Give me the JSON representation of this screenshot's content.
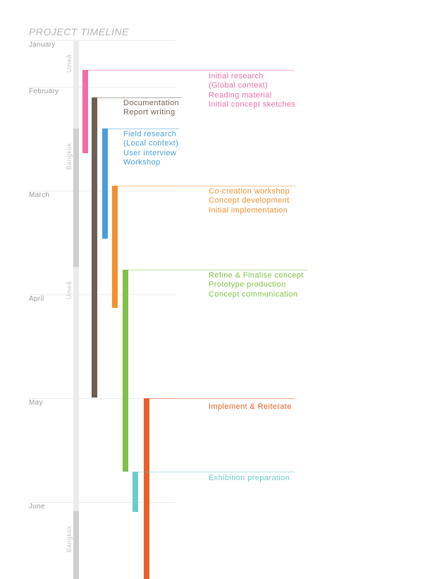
{
  "title": "PROJECT TIMELINE",
  "months": [
    "January",
    "February",
    "March",
    "April",
    "May",
    "June"
  ],
  "locations": [
    {
      "name": "Umeå"
    },
    {
      "name": "Bangkok"
    },
    {
      "name": "Umeå"
    },
    {
      "name": "Bangkok"
    }
  ],
  "phases": [
    {
      "id": "research",
      "color": "#ee6fa5",
      "lines": [
        "Initial research",
        "(Global context)",
        "Reading material",
        "Initial concept sketches"
      ]
    },
    {
      "id": "documentation",
      "color": "#6f5e55",
      "lines": [
        "Documentation",
        "Report writing"
      ]
    },
    {
      "id": "field",
      "color": "#4a9ed8",
      "lines": [
        "Field research",
        "(Local context)",
        "User interview",
        "Workshop"
      ]
    },
    {
      "id": "cocreation",
      "color": "#f39031",
      "lines": [
        "Co-creation workshop",
        "Concept development",
        "Initial implementation"
      ]
    },
    {
      "id": "refine",
      "color": "#7fc24a",
      "lines": [
        "Refine & Finalise concept",
        "Prototype production",
        "Concept communication"
      ]
    },
    {
      "id": "implement",
      "color": "#ec5f28",
      "lines": [
        "Implement & Reiterate"
      ]
    },
    {
      "id": "exhibition",
      "color": "#6ccbd0",
      "lines": [
        "Exhibition preparation"
      ]
    }
  ]
}
